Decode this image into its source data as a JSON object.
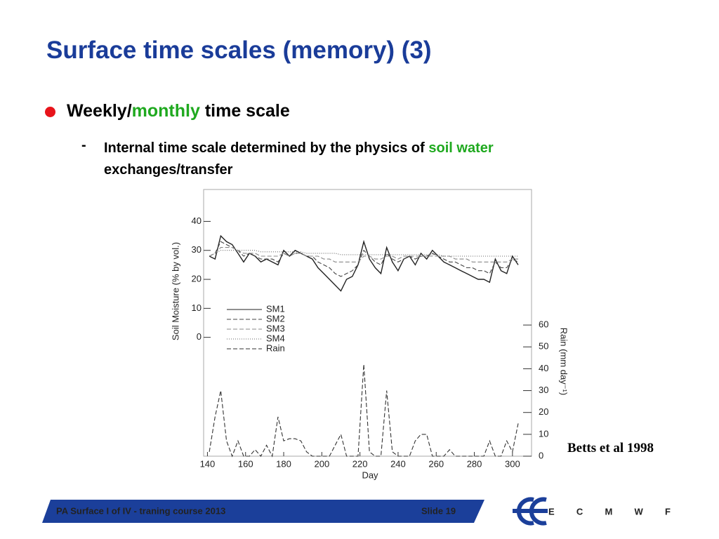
{
  "header": {
    "title": "Surface time scales (memory) (3)"
  },
  "bullet": {
    "parts": [
      "Weekly/",
      "monthly",
      " time scale"
    ]
  },
  "sub_bullet": {
    "marker": "-",
    "parts": [
      "Internal time scale determined by the physics of ",
      "soil water"
    ],
    "line2": "exchanges/transfer"
  },
  "chart_data": {
    "type": "line",
    "xlabel": "Day",
    "ylabel": "Soil Moisture (% by vol.)",
    "y2label": "Rain (mm day⁻¹)",
    "x": [
      141,
      144,
      147,
      150,
      153,
      156,
      159,
      162,
      165,
      168,
      171,
      174,
      177,
      180,
      183,
      186,
      189,
      192,
      195,
      198,
      201,
      204,
      207,
      210,
      213,
      216,
      219,
      222,
      225,
      228,
      231,
      234,
      237,
      240,
      243,
      246,
      249,
      252,
      255,
      258,
      261,
      264,
      267,
      270,
      273,
      276,
      279,
      282,
      285,
      288,
      291,
      294,
      297,
      300,
      303
    ],
    "series": [
      {
        "name": "SM1",
        "color": "#222222",
        "dash": "solid",
        "values": [
          28,
          27,
          35,
          33,
          32,
          29,
          26,
          29,
          28,
          26,
          27,
          26,
          25,
          30,
          28,
          30,
          29,
          28,
          27,
          24,
          22,
          20,
          18,
          16,
          20,
          21,
          25,
          33,
          27,
          24,
          22,
          31,
          26,
          23,
          27,
          28,
          25,
          29,
          27,
          30,
          28,
          26,
          25,
          24,
          23,
          22,
          21,
          20,
          20,
          19,
          27,
          23,
          22,
          28,
          25
        ]
      },
      {
        "name": "SM2",
        "color": "#444444",
        "dash": "dashed",
        "values": [
          28,
          29,
          33,
          32,
          31,
          30,
          28,
          29,
          28,
          27,
          27,
          27,
          26,
          29,
          28,
          29,
          29,
          28,
          28,
          26,
          25,
          24,
          22,
          21,
          22,
          23,
          25,
          30,
          28,
          26,
          25,
          29,
          27,
          26,
          27,
          28,
          27,
          28,
          28,
          29,
          28,
          27,
          26,
          26,
          25,
          24,
          24,
          23,
          23,
          22,
          26,
          24,
          24,
          27,
          26
        ]
      },
      {
        "name": "SM3",
        "color": "#888888",
        "dash": "dashed",
        "values": [
          28,
          29,
          31,
          31,
          31,
          30,
          29,
          29,
          29,
          28,
          28,
          28,
          28,
          29,
          28,
          29,
          29,
          28,
          28,
          28,
          27,
          27,
          26,
          26,
          26,
          26,
          26,
          28,
          28,
          27,
          27,
          28,
          28,
          27,
          28,
          28,
          28,
          28,
          28,
          28,
          28,
          28,
          28,
          27,
          27,
          27,
          26,
          26,
          26,
          26,
          26,
          26,
          26,
          27,
          27
        ]
      },
      {
        "name": "SM4",
        "color": "#666666",
        "dash": "dotted",
        "values": [
          28,
          29,
          30,
          30,
          30,
          30,
          30,
          30,
          30,
          29.5,
          29.5,
          29.5,
          29.5,
          29.5,
          29.5,
          29.5,
          29.5,
          29,
          29,
          29,
          29,
          29,
          29,
          28.5,
          28.5,
          28.5,
          28.5,
          28.5,
          28.5,
          28.5,
          28.5,
          28.5,
          28.5,
          28.5,
          28.5,
          28.5,
          28.5,
          28.5,
          28.5,
          28.5,
          28.5,
          28,
          28,
          28,
          28,
          28,
          28,
          28,
          28,
          28,
          28,
          28,
          28,
          28,
          28
        ]
      },
      {
        "name": "Rain",
        "color": "#333333",
        "dash": "dashed",
        "axis": "y2",
        "values": [
          2,
          18,
          30,
          7,
          0,
          7,
          0,
          0,
          3,
          0,
          5,
          0,
          18,
          7,
          8,
          8,
          7,
          2,
          0,
          0,
          0,
          0,
          5,
          10,
          0,
          0,
          0,
          42,
          2,
          0,
          0,
          30,
          2,
          0,
          0,
          0,
          7,
          10,
          10,
          0,
          0,
          0,
          3,
          0,
          0,
          0,
          0,
          0,
          0,
          7,
          0,
          0,
          7,
          2,
          15
        ]
      }
    ],
    "xlim": [
      138,
      310
    ],
    "xticks": [
      140,
      160,
      180,
      200,
      220,
      240,
      260,
      280,
      300
    ],
    "ylim": [
      -41,
      51
    ],
    "yticks": [
      0,
      10,
      20,
      30,
      40
    ],
    "y2lim": [
      0,
      122
    ],
    "y2ticks": [
      0,
      10,
      20,
      30,
      40,
      50,
      60
    ],
    "annotation": "Betts et al 1998"
  },
  "footer": {
    "text": "PA Surface I of IV - traning course 2013",
    "slide": "Slide 19",
    "logo": "ECMWF"
  }
}
